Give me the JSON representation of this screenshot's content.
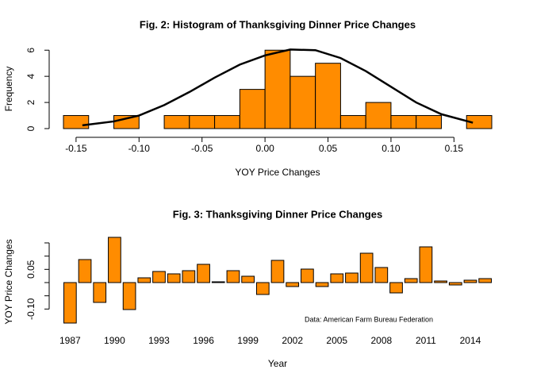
{
  "chart_data": [
    {
      "type": "histogram",
      "title": "Fig. 2: Histogram of Thanksgiving Dinner Price Changes",
      "xlabel": "YOY Price Changes",
      "ylabel": "Frequency",
      "bins": [
        -0.16,
        -0.14,
        -0.12,
        -0.1,
        -0.08,
        -0.06,
        -0.04,
        -0.02,
        0.0,
        0.02,
        0.04,
        0.06,
        0.08,
        0.1,
        0.12,
        0.14,
        0.16,
        0.18
      ],
      "counts": [
        1,
        0,
        1,
        0,
        1,
        1,
        1,
        3,
        6,
        4,
        5,
        1,
        2,
        1,
        1,
        0,
        1
      ],
      "color": "#ff8c00",
      "xlim": [
        -0.16,
        0.18
      ],
      "ylim": [
        0,
        6.5
      ],
      "xticks": [
        {
          "value": -0.15,
          "label": "-0.15"
        },
        {
          "value": -0.1,
          "label": "-0.10"
        },
        {
          "value": -0.05,
          "label": "-0.05"
        },
        {
          "value": 0,
          "label": "0.00"
        },
        {
          "value": 0.05,
          "label": "0.05"
        },
        {
          "value": 0.1,
          "label": "0.10"
        },
        {
          "value": 0.15,
          "label": "0.15"
        }
      ],
      "yticks": [
        0,
        2,
        4,
        6
      ],
      "lines": [
        {
          "color": "#000000",
          "x": [
            -0.145,
            -0.12,
            -0.1,
            -0.08,
            -0.06,
            -0.04,
            -0.02,
            0,
            0.02,
            0.04,
            0.06,
            0.08,
            0.1,
            0.12,
            0.14,
            0.165
          ],
          "values": [
            0.25,
            0.55,
            1.0,
            1.8,
            2.8,
            3.9,
            4.9,
            5.6,
            6.05,
            6.0,
            5.4,
            4.4,
            3.2,
            2.0,
            1.1,
            0.45
          ]
        }
      ]
    },
    {
      "type": "bar",
      "title": "Fig. 3: Thanksgiving Dinner Price Changes",
      "xlabel": "Year",
      "ylabel": "YOY Price Changes",
      "annotation": "Data: American Farm Bureau Federation",
      "categories": [
        "1987",
        null,
        null,
        "1990",
        null,
        null,
        "1993",
        null,
        null,
        "1996",
        null,
        null,
        "1999",
        null,
        null,
        "2002",
        null,
        null,
        "2005",
        null,
        null,
        "2008",
        null,
        null,
        "2011",
        null,
        null,
        "2014",
        null
      ],
      "values": [
        -0.153,
        0.087,
        -0.075,
        0.171,
        -0.102,
        0.018,
        0.042,
        0.033,
        0.045,
        0.069,
        0.003,
        0.045,
        0.024,
        -0.045,
        0.084,
        -0.015,
        0.051,
        -0.015,
        0.033,
        0.036,
        0.111,
        0.057,
        -0.039,
        0.015,
        0.135,
        0.006,
        -0.009,
        0.009,
        0.015
      ],
      "color": "#ff8c00",
      "ylim": [
        -0.165,
        0.18
      ],
      "yticks": [
        {
          "value": -0.1,
          "label": "-0.10"
        },
        {
          "value": -0.05
        },
        {
          "value": 0
        },
        {
          "value": 0.05,
          "label": "0.05"
        },
        {
          "value": 0.1
        },
        {
          "value": 0.15
        }
      ]
    }
  ]
}
